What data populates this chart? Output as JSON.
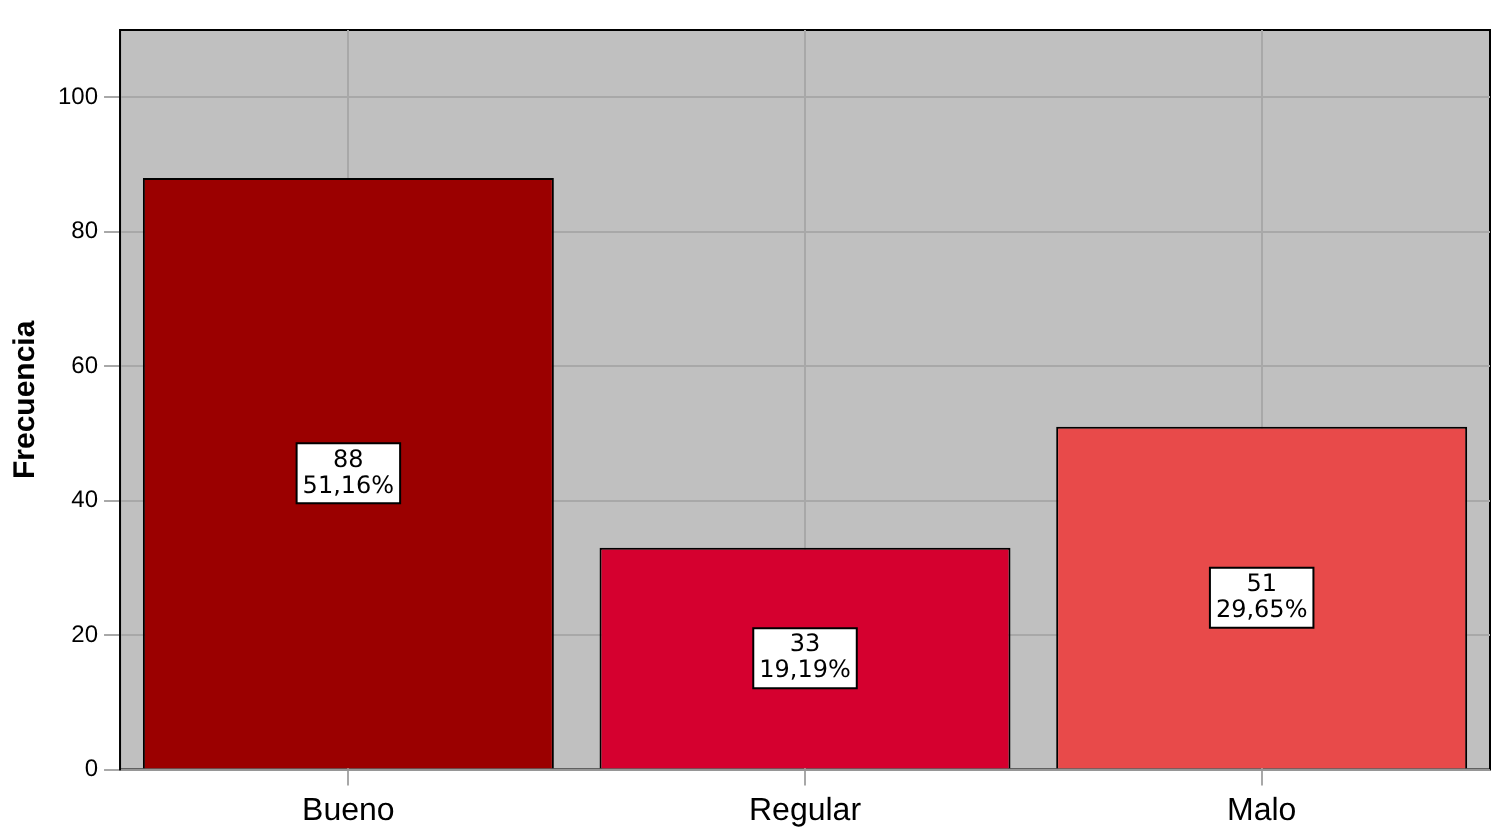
{
  "chart_data": {
    "type": "bar",
    "ylabel": "Frecuencia",
    "categories": [
      "Bueno",
      "Regular",
      "Malo"
    ],
    "values": [
      88,
      33,
      51
    ],
    "colors": [
      "#9b0000",
      "#d5002f",
      "#e84a4a"
    ],
    "value_labels": [
      "88\n51,16%",
      "33\n19,19%",
      "51\n29,65%"
    ],
    "ylim": [
      0,
      110
    ],
    "yticks": [
      0,
      20,
      40,
      60,
      80,
      100
    ],
    "grid": true,
    "legend": false
  }
}
